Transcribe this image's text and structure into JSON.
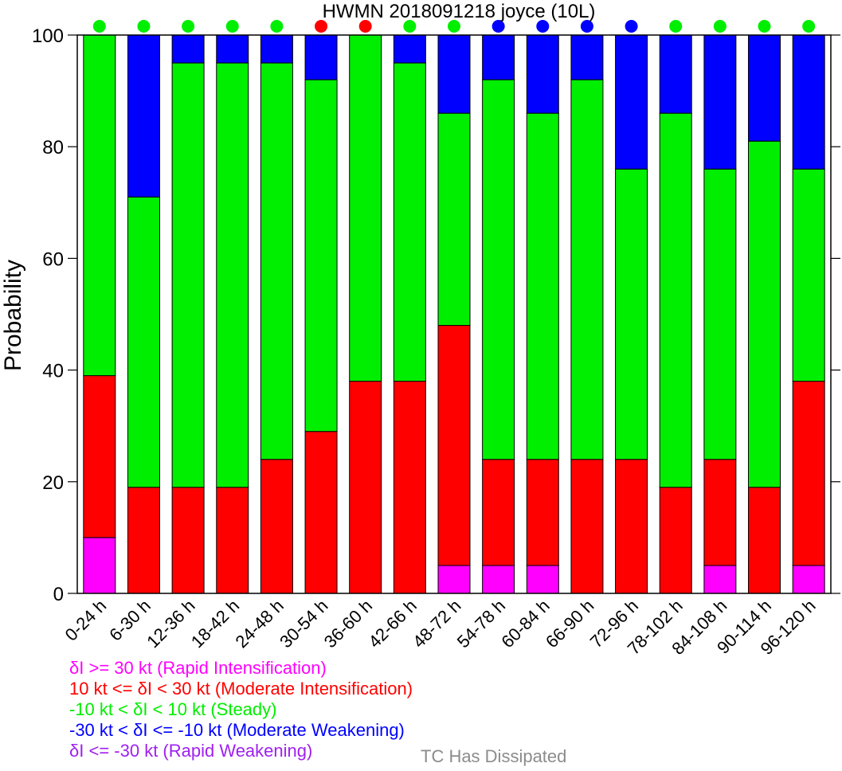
{
  "chart_data": {
    "type": "bar",
    "stacked": true,
    "title": "HWMN 2018091218 joyce (10L)",
    "ylabel": "Probability",
    "xlabel": "",
    "ylim": [
      0,
      100
    ],
    "yticks": [
      0,
      20,
      40,
      60,
      80,
      100
    ],
    "grid": false,
    "categories": [
      "0-24 h",
      "6-30 h",
      "12-36 h",
      "18-42 h",
      "24-48 h",
      "30-54 h",
      "36-60 h",
      "42-66 h",
      "48-72 h",
      "54-78 h",
      "60-84 h",
      "66-90 h",
      "72-96 h",
      "78-102 h",
      "84-108 h",
      "90-114 h",
      "96-120 h"
    ],
    "series": [
      {
        "name": "Rapid Intensification",
        "color": "#ff00ff",
        "values": [
          10,
          0,
          0,
          0,
          0,
          0,
          0,
          0,
          5,
          5,
          5,
          0,
          0,
          0,
          5,
          0,
          5
        ]
      },
      {
        "name": "Moderate Intensification",
        "color": "#ff0000",
        "values": [
          29,
          19,
          19,
          19,
          24,
          29,
          38,
          38,
          43,
          19,
          19,
          24,
          24,
          19,
          19,
          19,
          33
        ]
      },
      {
        "name": "Steady",
        "color": "#00ee00",
        "values": [
          61,
          52,
          76,
          76,
          71,
          63,
          62,
          57,
          38,
          68,
          62,
          68,
          52,
          67,
          52,
          62,
          38
        ]
      },
      {
        "name": "Moderate Weakening",
        "color": "#0000ff",
        "values": [
          0,
          29,
          5,
          5,
          5,
          8,
          0,
          5,
          14,
          8,
          14,
          8,
          24,
          14,
          24,
          19,
          24
        ]
      },
      {
        "name": "Rapid Weakening",
        "color": "#a020f0",
        "values": [
          0,
          0,
          0,
          0,
          0,
          0,
          0,
          0,
          0,
          0,
          0,
          0,
          0,
          0,
          0,
          0,
          0
        ]
      }
    ],
    "indicator_dots": [
      "#00ee00",
      "#00ee00",
      "#00ee00",
      "#00ee00",
      "#00ee00",
      "#ff0000",
      "#ff0000",
      "#00ee00",
      "#00ee00",
      "#0000ff",
      "#0000ff",
      "#0000ff",
      "#0000ff",
      "#00ee00",
      "#00ee00",
      "#00ee00",
      "#00ee00"
    ],
    "legend": [
      {
        "text": "δI >= 30 kt (Rapid Intensification)",
        "color": "#ff00ff"
      },
      {
        "text": "10 kt <= δI < 30 kt (Moderate Intensification)",
        "color": "#ff0000"
      },
      {
        "text": "-10 kt < δI < 10 kt (Steady)",
        "color": "#00ee00"
      },
      {
        "text": "-30 kt < δI <= -10 kt (Moderate Weakening)",
        "color": "#0000ff"
      },
      {
        "text": "δI <= -30 kt (Rapid Weakening)",
        "color": "#a020f0"
      }
    ],
    "dissipated_label": "TC Has Dissipated",
    "dissipated_color": "#8c8c8c"
  }
}
